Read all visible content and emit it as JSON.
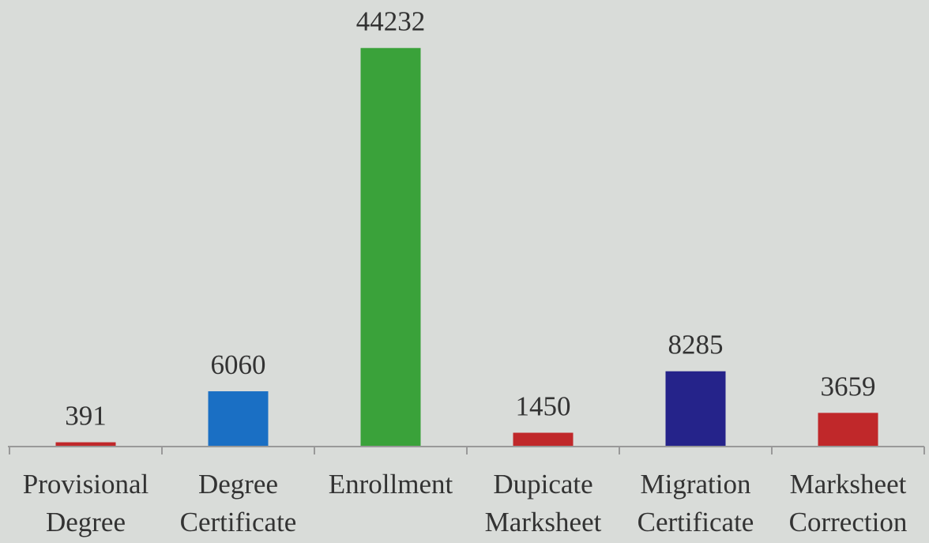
{
  "chart_data": {
    "type": "bar",
    "categories": [
      "Provisional Degree",
      "Degree Certificate",
      "Enrollment",
      "Dupicate Marksheet",
      "Migration Certificate",
      "Marksheet Correction"
    ],
    "values": [
      391,
      6060,
      44232,
      1450,
      8285,
      3659
    ],
    "colors": [
      "#c0282a",
      "#1a6fc4",
      "#3aa23a",
      "#c0282a",
      "#25238a",
      "#c0282a"
    ],
    "ylim": [
      0,
      45000
    ]
  }
}
